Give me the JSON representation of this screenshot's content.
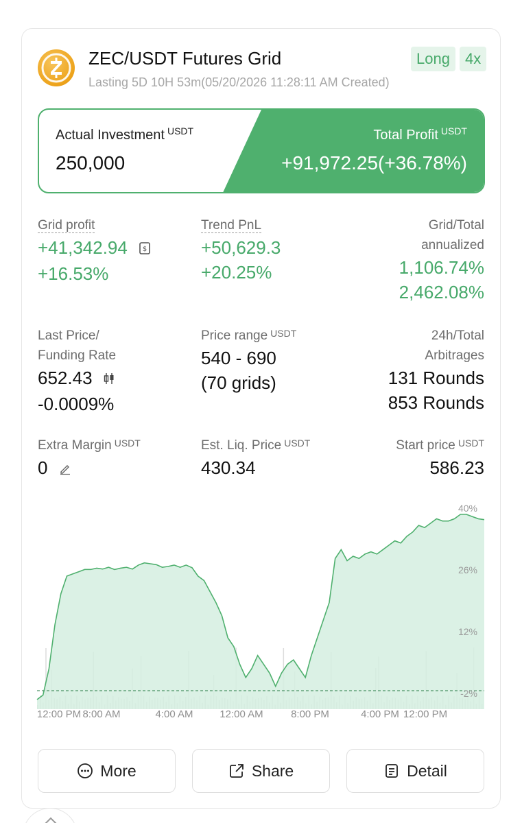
{
  "header": {
    "coin_icon": "zec-coin-icon",
    "title": "ZEC/USDT Futures Grid",
    "subtitle": "Lasting 5D 10H 53m(05/20/2026 11:28:11 AM Created)",
    "tags": {
      "direction": "Long",
      "leverage": "4x"
    }
  },
  "investment": {
    "label": "Actual Investment",
    "unit": "USDT",
    "value": "250,000"
  },
  "total_profit": {
    "label": "Total Profit",
    "unit": "USDT",
    "value": "+91,972.25(+36.78%)"
  },
  "stats": {
    "grid_profit": {
      "label": "Grid profit",
      "value": "+41,342.94",
      "pct": "+16.53%"
    },
    "trend_pnl": {
      "label": "Trend PnL",
      "value": "+50,629.3",
      "pct": "+20.25%"
    },
    "annualized": {
      "label_line1": "Grid/Total",
      "label_line2": "annualized",
      "grid": "1,106.74%",
      "total": "2,462.08%"
    },
    "last_price": {
      "label_line1": "Last Price/",
      "label_line2": "Funding Rate",
      "price": "652.43",
      "funding": "-0.0009%"
    },
    "price_range": {
      "label": "Price range",
      "unit": "USDT",
      "value": "540 - 690",
      "grids": "(70 grids)"
    },
    "arbitrages": {
      "label_line1": "24h/Total",
      "label_line2": "Arbitrages",
      "h24": "131 Rounds",
      "total": "853 Rounds"
    },
    "extra_margin": {
      "label": "Extra Margin",
      "unit": "USDT",
      "value": "0"
    },
    "liq_price": {
      "label": "Est. Liq. Price",
      "unit": "USDT",
      "value": "430.34"
    },
    "start_price": {
      "label": "Start price",
      "unit": "USDT",
      "value": "586.23"
    }
  },
  "chart_data": {
    "type": "area",
    "y_tick_labels": [
      "40%",
      "26%",
      "12%",
      "-2%"
    ],
    "x_tick_labels": [
      "12:00 PM",
      "8:00 AM",
      "4:00 AM",
      "12:00 AM",
      "8:00 PM",
      "4:00 PM",
      "12:00 PM"
    ],
    "ylim": [
      -2,
      40
    ],
    "baseline": 0,
    "series": [
      {
        "values": [
          -2,
          -1,
          5,
          15,
          22,
          26,
          26.5,
          27,
          27.5,
          27.5,
          27.8,
          27.6,
          28,
          27.5,
          27.8,
          28,
          27.6,
          28.5,
          29,
          28.8,
          28.6,
          28,
          28.2,
          28.5,
          28,
          28.5,
          27.9,
          26,
          25,
          22.5,
          20,
          17,
          12,
          10,
          6,
          3,
          5,
          8,
          6,
          4,
          1,
          4,
          6,
          7,
          5,
          3,
          8,
          12,
          16,
          20,
          30,
          32,
          29.5,
          30.5,
          30,
          31,
          31.5,
          31,
          32,
          33,
          34,
          33.5,
          35,
          36,
          37.5,
          37,
          38,
          39,
          38.5,
          38.5,
          39,
          40,
          40,
          39.5,
          39,
          38.8
        ]
      }
    ],
    "grid": false,
    "legend": "none"
  },
  "buttons": {
    "more": "More",
    "share": "Share",
    "detail": "Detail"
  },
  "colors": {
    "accent_green": "#47a96a",
    "area_fill": "#d5efe0",
    "line": "#4fb06e"
  }
}
